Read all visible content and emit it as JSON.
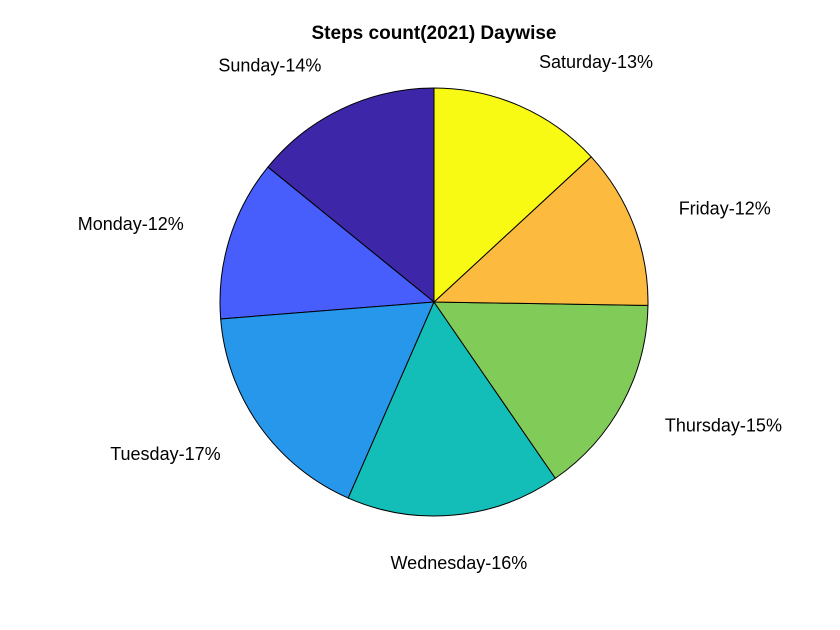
{
  "chart_data": {
    "type": "pie",
    "title": "Steps count(2021) Daywise",
    "direction": "counterclockwise",
    "start_angle_deg": 90,
    "slices": [
      {
        "category": "Sunday",
        "label": "Sunday-14%",
        "value": 14,
        "color": "#3e26a8"
      },
      {
        "category": "Monday",
        "label": "Monday-12%",
        "value": 12,
        "color": "#475efc"
      },
      {
        "category": "Tuesday",
        "label": "Tuesday-17%",
        "value": 17,
        "color": "#2797eb"
      },
      {
        "category": "Wednesday",
        "label": "Wednesday-16%",
        "value": 16,
        "color": "#13beb8"
      },
      {
        "category": "Thursday",
        "label": "Thursday-15%",
        "value": 15,
        "color": "#81cc59"
      },
      {
        "category": "Friday",
        "label": "Friday-12%",
        "value": 12,
        "color": "#fcbb3e"
      },
      {
        "category": "Saturday",
        "label": "Saturday-13%",
        "value": 13,
        "color": "#f8fa14"
      }
    ]
  }
}
